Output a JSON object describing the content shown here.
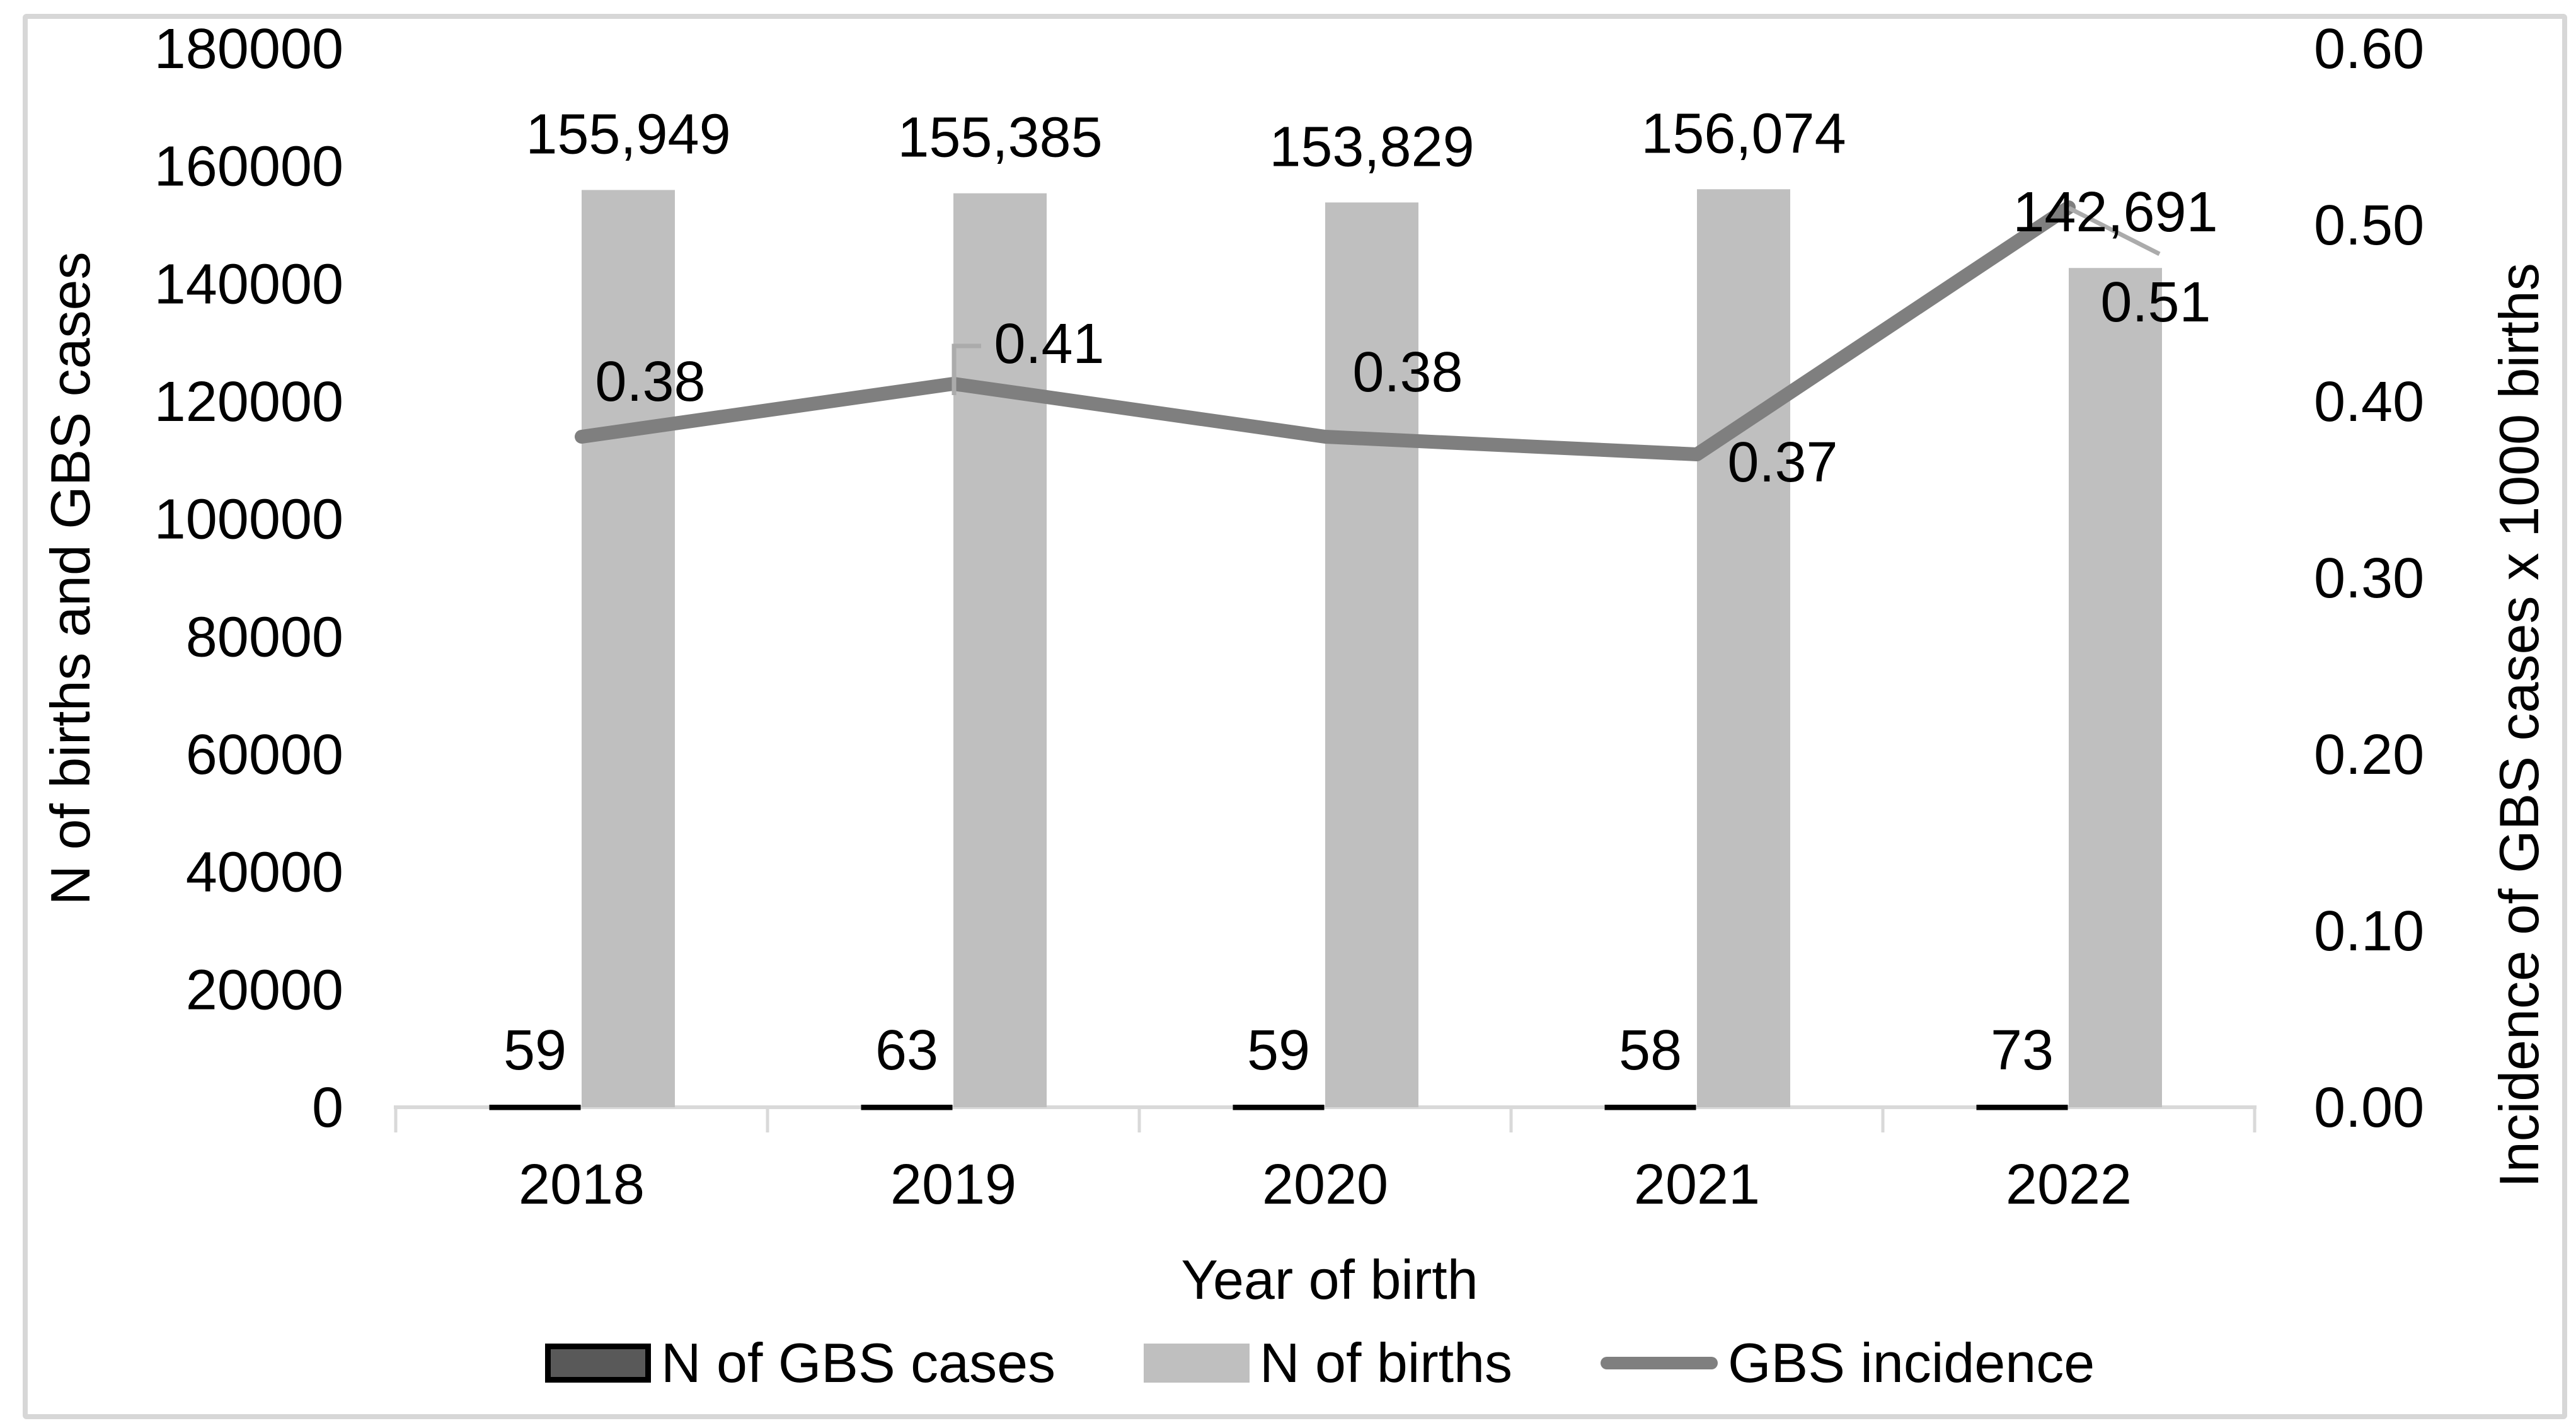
{
  "figure": {
    "background": "#FFFFFF",
    "border_color": "#D7D7D7"
  },
  "chart_data": {
    "type": "combo-bar-line",
    "categories": [
      "2018",
      "2019",
      "2020",
      "2021",
      "2022"
    ],
    "x_axis": {
      "title": "Year of birth"
    },
    "left_axis": {
      "title": "N of births and GBS cases",
      "min": 0,
      "max": 180000,
      "step": 20000
    },
    "right_axis": {
      "title": "Incidence of GBS cases x 1000 births",
      "min": 0,
      "max": 0.6,
      "step": 0.1,
      "decimals": 2
    },
    "grid": false,
    "legend_position": "bottom",
    "axis_color": "#D9D9D9",
    "leader_line_color": "#ABABAB",
    "series": [
      {
        "name": "N of GBS cases",
        "type": "bar",
        "axis": "left",
        "fill": "#595959",
        "stroke": "#000000",
        "values": [
          59,
          63,
          59,
          58,
          73
        ],
        "labels": [
          "59",
          "63",
          "59",
          "58",
          "73"
        ]
      },
      {
        "name": "N of births",
        "type": "bar",
        "axis": "left",
        "fill": "#BFBFBF",
        "values": [
          155949,
          155385,
          153829,
          156074,
          142691
        ],
        "labels": [
          "155,949",
          "155,385",
          "153,829",
          "156,074",
          "142,691"
        ]
      },
      {
        "name": "GBS incidence",
        "type": "line",
        "axis": "right",
        "stroke": "#7F7F7F",
        "values": [
          0.38,
          0.41,
          0.38,
          0.37,
          0.51
        ],
        "labels": [
          "0.38",
          "0.41",
          "0.38",
          "0.37",
          "0.51"
        ]
      }
    ]
  }
}
